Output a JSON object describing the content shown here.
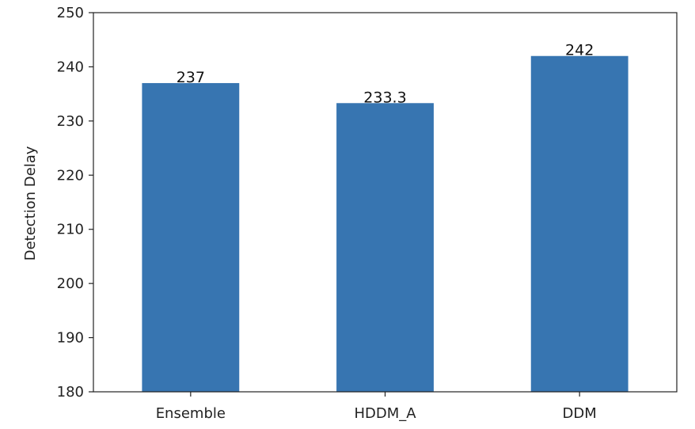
{
  "chart_data": {
    "type": "bar",
    "title": "",
    "xlabel": "",
    "ylabel": "Detection Delay",
    "categories": [
      "Ensemble",
      "HDDM_A",
      "DDM"
    ],
    "values": [
      237,
      233.3,
      242
    ],
    "data_labels": [
      "237",
      "233.3",
      "242"
    ],
    "ylim": [
      180,
      250
    ],
    "yticks": [
      180,
      190,
      200,
      210,
      220,
      230,
      240,
      250
    ],
    "grid": false,
    "legend": "none",
    "bar_color": "#3775b1"
  }
}
